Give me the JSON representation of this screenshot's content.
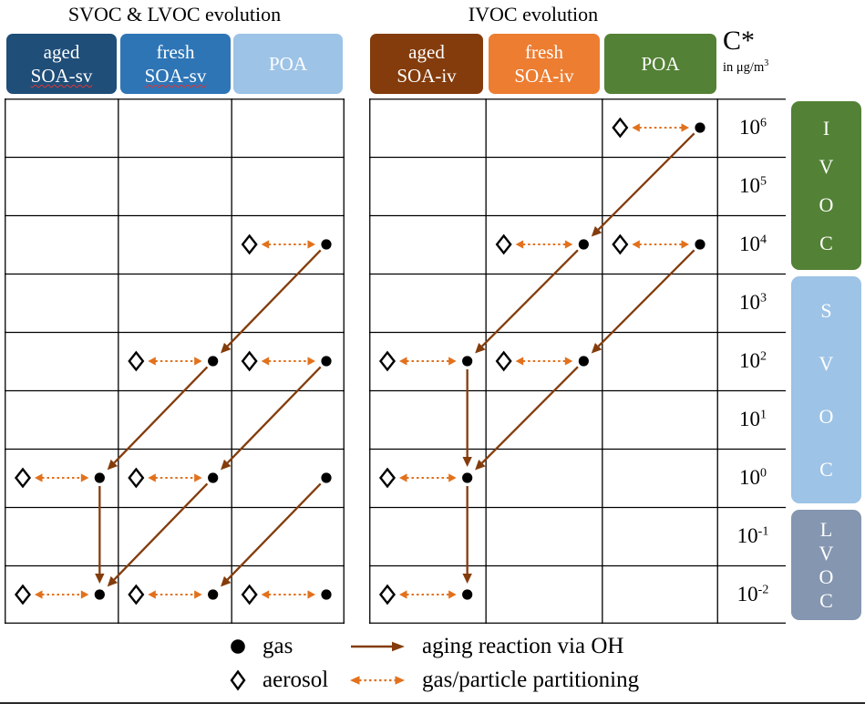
{
  "titles": {
    "left": "SVOC & LVOC evolution",
    "right": "IVOC evolution"
  },
  "cstar_header": {
    "symbol": "C*",
    "unit_prefix": "in μg/m",
    "unit_sup": "3"
  },
  "rows": [
    {
      "base": "10",
      "exp": "6"
    },
    {
      "base": "10",
      "exp": "5"
    },
    {
      "base": "10",
      "exp": "4"
    },
    {
      "base": "10",
      "exp": "3"
    },
    {
      "base": "10",
      "exp": "2"
    },
    {
      "base": "10",
      "exp": "1"
    },
    {
      "base": "10",
      "exp": "0"
    },
    {
      "base": "10",
      "exp": "-1"
    },
    {
      "base": "10",
      "exp": "-2"
    }
  ],
  "volatility_classes": [
    {
      "label": "IVOC",
      "row_start": 0,
      "row_end": 2,
      "color": "#538135"
    },
    {
      "label": "SVOC",
      "row_start": 3,
      "row_end": 6,
      "color": "#9DC3E6"
    },
    {
      "label": "LVOC",
      "row_start": 7,
      "row_end": 8,
      "color": "#8496B0"
    }
  ],
  "panels": [
    {
      "id": "svoc-lvoc",
      "title": "SVOC & LVOC evolution",
      "columns": [
        {
          "line1": "aged",
          "line2": "SOA-sv",
          "color": "#1F4E79",
          "misspelled": true
        },
        {
          "line1": "fresh",
          "line2": "SOA-sv",
          "color": "#2E75B6",
          "misspelled": true
        },
        {
          "line1": "POA",
          "line2": "",
          "color": "#9DC3E6",
          "misspelled": false
        }
      ],
      "markers": [
        {
          "col": 2,
          "row": 2,
          "type": "gas-aerosol"
        },
        {
          "col": 1,
          "row": 4,
          "type": "gas-aerosol"
        },
        {
          "col": 2,
          "row": 4,
          "type": "gas-aerosol"
        },
        {
          "col": 0,
          "row": 6,
          "type": "gas-aerosol"
        },
        {
          "col": 1,
          "row": 6,
          "type": "gas-aerosol"
        },
        {
          "col": 2,
          "row": 6,
          "type": "gas-only"
        },
        {
          "col": 0,
          "row": 8,
          "type": "gas-aerosol"
        },
        {
          "col": 1,
          "row": 8,
          "type": "gas-aerosol"
        },
        {
          "col": 2,
          "row": 8,
          "type": "gas-aerosol"
        }
      ],
      "aging_arrows": [
        {
          "from_col": 2,
          "from_row": 2,
          "to_col": 1,
          "to_row": 4
        },
        {
          "from_col": 1,
          "from_row": 4,
          "to_col": 0,
          "to_row": 6
        },
        {
          "from_col": 2,
          "from_row": 4,
          "to_col": 1,
          "to_row": 6
        },
        {
          "from_col": 0,
          "from_row": 6,
          "to_col": 0,
          "to_row": 8
        },
        {
          "from_col": 1,
          "from_row": 6,
          "to_col": 0,
          "to_row": 8
        },
        {
          "from_col": 2,
          "from_row": 6,
          "to_col": 1,
          "to_row": 8
        }
      ]
    },
    {
      "id": "ivoc",
      "title": "IVOC evolution",
      "columns": [
        {
          "line1": "aged",
          "line2": "SOA-iv",
          "color": "#843C0C",
          "misspelled": false
        },
        {
          "line1": "fresh",
          "line2": "SOA-iv",
          "color": "#ED7D31",
          "misspelled": false
        },
        {
          "line1": "POA",
          "line2": "",
          "color": "#538135",
          "misspelled": false
        }
      ],
      "markers": [
        {
          "col": 2,
          "row": 0,
          "type": "gas-aerosol"
        },
        {
          "col": 1,
          "row": 2,
          "type": "gas-aerosol"
        },
        {
          "col": 2,
          "row": 2,
          "type": "gas-aerosol"
        },
        {
          "col": 0,
          "row": 4,
          "type": "gas-aerosol"
        },
        {
          "col": 1,
          "row": 4,
          "type": "gas-aerosol"
        },
        {
          "col": 0,
          "row": 6,
          "type": "gas-aerosol"
        },
        {
          "col": 0,
          "row": 8,
          "type": "gas-aerosol"
        }
      ],
      "aging_arrows": [
        {
          "from_col": 2,
          "from_row": 0,
          "to_col": 1,
          "to_row": 2
        },
        {
          "from_col": 1,
          "from_row": 2,
          "to_col": 0,
          "to_row": 4
        },
        {
          "from_col": 2,
          "from_row": 2,
          "to_col": 1,
          "to_row": 4
        },
        {
          "from_col": 1,
          "from_row": 4,
          "to_col": 0,
          "to_row": 6
        },
        {
          "from_col": 0,
          "from_row": 4,
          "to_col": 0,
          "to_row": 6
        },
        {
          "from_col": 0,
          "from_row": 6,
          "to_col": 0,
          "to_row": 8
        }
      ]
    }
  ],
  "legend": {
    "gas": {
      "label": "gas",
      "icon": "filled-circle-icon"
    },
    "aerosol": {
      "label": "aerosol",
      "icon": "open-diamond-icon"
    },
    "aging": {
      "label": "aging reaction via OH",
      "icon": "solid-arrow-icon"
    },
    "partitioning": {
      "label": "gas/particle partitioning",
      "icon": "dashed-double-arrow-icon"
    }
  },
  "colors": {
    "aging_arrow": "#843C0C",
    "partitioning_arrow": "#E2711D",
    "grid_line": "#000000",
    "symbol": "#000000"
  }
}
